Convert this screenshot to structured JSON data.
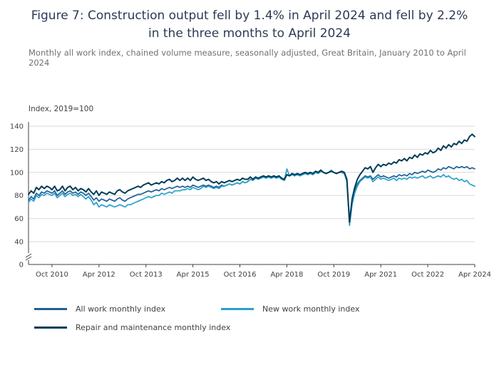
{
  "title": "Figure 7: Construction output fell by 1.4% in April 2024 and fell by 2.2% in the three months to April 2024",
  "subtitle": "Monthly all work index, chained volume measure, seasonally adjusted, Great Britain, January 2010 to April 2024",
  "chart_data": {
    "type": "line",
    "title": "Figure 7: Construction output fell by 1.4% in April 2024 and fell by 2.2% in the three months to April 2024",
    "subtitle": "Monthly all work index, chained volume measure, seasonally adjusted, Great Britain, January 2010 to April 2024",
    "y_axis_label": "Index, 2019=100",
    "ylim": [
      0,
      140
    ],
    "y_ticks": [
      0,
      40,
      60,
      80,
      100,
      120,
      140
    ],
    "axis_break_between": [
      0,
      40
    ],
    "grid": "horizontal",
    "legend_position": "bottom",
    "x_start": "Jan 2010",
    "x_end": "Apr 2024",
    "x_ticks": [
      {
        "label": "Oct 2010",
        "index": 9
      },
      {
        "label": "Apr 2012",
        "index": 27
      },
      {
        "label": "Oct 2013",
        "index": 45
      },
      {
        "label": "Apr 2015",
        "index": 63
      },
      {
        "label": "Oct 2016",
        "index": 81
      },
      {
        "label": "Apr 2018",
        "index": 99
      },
      {
        "label": "Oct 2019",
        "index": 117
      },
      {
        "label": "Apr 2021",
        "index": 135
      },
      {
        "label": "Oct 2022",
        "index": 153
      },
      {
        "label": "Apr 2024",
        "index": 171
      }
    ],
    "series": [
      {
        "name": "All work monthly index",
        "color": "#206095",
        "values": [
          76,
          79,
          77,
          82,
          80,
          83,
          82,
          84,
          83,
          82,
          84,
          80,
          82,
          84,
          81,
          83,
          84,
          82,
          83,
          81,
          83,
          82,
          80,
          82,
          79,
          76,
          78,
          75,
          77,
          76,
          75,
          77,
          76,
          75,
          77,
          78,
          76,
          75,
          77,
          78,
          79,
          80,
          81,
          81,
          82,
          83,
          84,
          83,
          84,
          85,
          84,
          86,
          85,
          86,
          87,
          86,
          87,
          88,
          87,
          88,
          87,
          88,
          87,
          89,
          88,
          87,
          88,
          89,
          88,
          89,
          88,
          87,
          88,
          87,
          89,
          88,
          89,
          90,
          89,
          90,
          91,
          90,
          92,
          91,
          92,
          94,
          93,
          95,
          94,
          95,
          96,
          95,
          96,
          95,
          96,
          95,
          96,
          94,
          93,
          98,
          97,
          98,
          97,
          98,
          97,
          98,
          99,
          98,
          99,
          98,
          100,
          99,
          101,
          100,
          99,
          100,
          101,
          100,
          99,
          100,
          100,
          99,
          93,
          56,
          74,
          84,
          90,
          93,
          95,
          97,
          96,
          97,
          94,
          96,
          98,
          96,
          97,
          96,
          95,
          96,
          97,
          96,
          98,
          97,
          98,
          97,
          99,
          98,
          100,
          99,
          100,
          101,
          100,
          102,
          101,
          100,
          101,
          103,
          102,
          104,
          103,
          105,
          104,
          103,
          105,
          104,
          105,
          104,
          105,
          103,
          104,
          103
        ]
      },
      {
        "name": "New work monthly index",
        "color": "#27A0CC",
        "values": [
          74,
          77,
          75,
          80,
          78,
          81,
          80,
          82,
          81,
          80,
          82,
          78,
          80,
          82,
          79,
          81,
          82,
          80,
          81,
          79,
          81,
          79,
          77,
          79,
          76,
          72,
          74,
          70,
          72,
          71,
          70,
          72,
          71,
          70,
          71,
          72,
          71,
          70,
          72,
          72,
          73,
          74,
          75,
          76,
          77,
          78,
          79,
          78,
          79,
          80,
          80,
          82,
          81,
          82,
          83,
          82,
          84,
          84,
          84,
          85,
          85,
          86,
          85,
          87,
          86,
          85,
          86,
          88,
          87,
          88,
          87,
          86,
          87,
          86,
          88,
          88,
          89,
          90,
          89,
          90,
          91,
          90,
          92,
          91,
          92,
          94,
          93,
          95,
          94,
          95,
          96,
          95,
          96,
          95,
          96,
          95,
          96,
          94,
          93,
          103,
          97,
          98,
          97,
          98,
          97,
          98,
          99,
          98,
          99,
          98,
          100,
          99,
          101,
          100,
          99,
          100,
          102,
          100,
          99,
          100,
          100,
          99,
          92,
          54,
          72,
          82,
          88,
          92,
          94,
          96,
          95,
          96,
          92,
          94,
          96,
          94,
          95,
          94,
          93,
          94,
          95,
          93,
          95,
          94,
          95,
          94,
          96,
          95,
          96,
          95,
          96,
          97,
          95,
          96,
          97,
          95,
          96,
          97,
          96,
          98,
          96,
          97,
          95,
          94,
          95,
          93,
          94,
          92,
          93,
          90,
          89,
          88
        ]
      },
      {
        "name": "Repair and maintenance monthly index",
        "color": "#003C57",
        "values": [
          81,
          84,
          82,
          87,
          85,
          88,
          86,
          88,
          87,
          85,
          88,
          84,
          85,
          88,
          84,
          87,
          88,
          85,
          87,
          84,
          86,
          85,
          83,
          86,
          83,
          81,
          84,
          80,
          83,
          82,
          81,
          83,
          82,
          81,
          84,
          85,
          83,
          82,
          84,
          85,
          86,
          87,
          88,
          87,
          89,
          90,
          91,
          89,
          90,
          91,
          90,
          92,
          91,
          93,
          94,
          92,
          93,
          95,
          93,
          95,
          93,
          95,
          93,
          96,
          94,
          93,
          94,
          95,
          93,
          94,
          92,
          91,
          92,
          90,
          92,
          91,
          92,
          93,
          92,
          93,
          94,
          93,
          95,
          94,
          94,
          96,
          94,
          96,
          95,
          96,
          97,
          96,
          97,
          96,
          97,
          96,
          97,
          95,
          94,
          98,
          97,
          99,
          98,
          99,
          98,
          99,
          100,
          99,
          100,
          99,
          101,
          100,
          102,
          100,
          99,
          100,
          101,
          100,
          99,
          100,
          101,
          100,
          94,
          57,
          77,
          87,
          94,
          98,
          101,
          104,
          103,
          105,
          100,
          104,
          107,
          105,
          107,
          106,
          108,
          107,
          109,
          108,
          111,
          110,
          112,
          110,
          113,
          112,
          115,
          113,
          116,
          115,
          117,
          116,
          119,
          117,
          118,
          121,
          119,
          123,
          121,
          124,
          122,
          125,
          124,
          127,
          125,
          128,
          127,
          131,
          133,
          131
        ]
      }
    ],
    "colors": {
      "all_work": "#206095",
      "new_work": "#27A0CC",
      "repair_maintenance": "#003C57",
      "grid": "#d9d9d9",
      "axis": "#414042"
    }
  }
}
